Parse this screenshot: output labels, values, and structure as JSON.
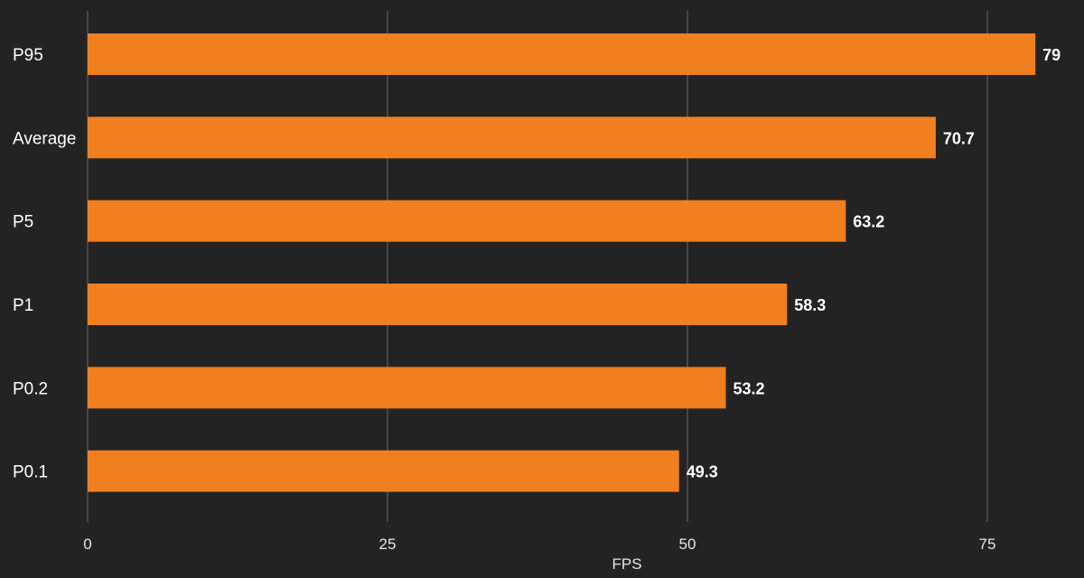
{
  "chart_data": {
    "type": "bar",
    "orientation": "horizontal",
    "categories": [
      "P95",
      "Average",
      "P5",
      "P1",
      "P0.2",
      "P0.1"
    ],
    "values": [
      79,
      70.7,
      63.2,
      58.3,
      53.2,
      49.3
    ],
    "value_labels": [
      "79",
      "70.7",
      "63.2",
      "58.3",
      "53.2",
      "49.3"
    ],
    "xlabel": "FPS",
    "ylabel": "",
    "title": "",
    "xlim": [
      0,
      80
    ],
    "xticks": [
      0,
      25,
      50,
      75
    ],
    "xtick_labels": [
      "0",
      "25",
      "50",
      "75"
    ],
    "grid": true,
    "legend": "none",
    "bar_color": "#f07f1f",
    "background": "#232323"
  }
}
